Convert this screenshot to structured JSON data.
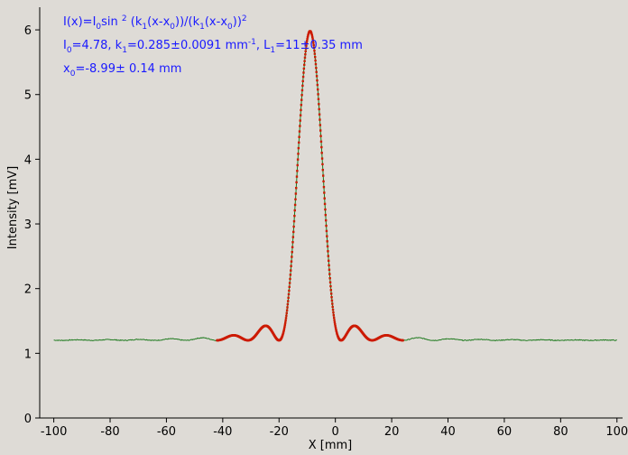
{
  "chart_data": {
    "type": "scatter",
    "xlabel": "X [mm]",
    "ylabel": "Intensity [mV]",
    "xlim": [
      -105,
      102
    ],
    "ylim": [
      0,
      6.35
    ],
    "x_ticks": [
      -100,
      -80,
      -60,
      -40,
      -20,
      0,
      20,
      40,
      60,
      80,
      100
    ],
    "y_ticks": [
      0,
      1,
      2,
      3,
      4,
      5,
      6
    ],
    "grid": false,
    "annotations": {
      "formula": [
        "I(x)=I",
        "0",
        "sin ",
        "2",
        " (k",
        "1",
        "(x-x",
        "0",
        "))/(k",
        "1",
        "(x-x",
        "0",
        "))",
        "2"
      ],
      "line1": [
        "I",
        "0",
        "=4.78,  k",
        "1",
        "=0.285±0.0091 mm",
        "-1",
        ",   L",
        "1",
        "=11±0.35 mm"
      ],
      "line2": [
        "x",
        "0",
        "=-8.99±   0.14 mm"
      ]
    },
    "measured": {
      "color": "#1e7a1e",
      "x_range": [
        -100,
        100
      ],
      "baseline": 1.2,
      "peaks": [
        {
          "x": -8.99,
          "y": 6.0
        },
        {
          "x": -24.8,
          "y": 1.44
        },
        {
          "x": -36.5,
          "y": 1.28
        },
        {
          "x": 6.8,
          "y": 1.44
        },
        {
          "x": 18.5,
          "y": 1.28
        }
      ],
      "minima": [
        {
          "x": -19.9,
          "y": 1.2
        },
        {
          "x": -30.9,
          "y": 1.2
        },
        {
          "x": 1.9,
          "y": 1.2
        },
        {
          "x": 13.1,
          "y": 1.2
        }
      ]
    },
    "fit": {
      "color": "#cc1a00",
      "x_range": [
        -42,
        24
      ],
      "I0": 4.78,
      "k1": 0.285,
      "x0": -8.99,
      "offset": 1.2
    }
  }
}
